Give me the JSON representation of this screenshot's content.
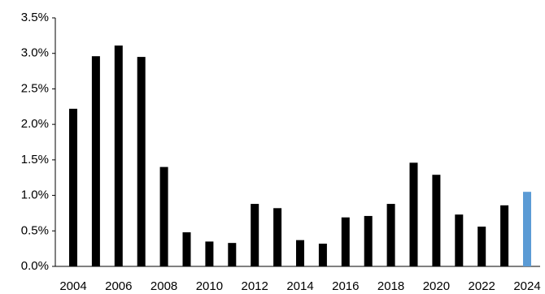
{
  "chart_data": {
    "type": "bar",
    "categories": [
      "2004",
      null,
      "2006",
      null,
      "2008",
      null,
      "2010",
      null,
      "2012",
      null,
      "2014",
      null,
      "2016",
      null,
      "2018",
      null,
      "2020",
      null,
      "2022",
      null,
      "2024"
    ],
    "values": [
      2.22,
      2.96,
      3.11,
      2.95,
      1.4,
      0.48,
      0.35,
      0.33,
      0.88,
      0.82,
      0.37,
      0.32,
      0.69,
      0.71,
      0.88,
      1.46,
      1.29,
      0.73,
      0.56,
      0.86,
      1.05
    ],
    "colors": [
      "#000000",
      "#000000",
      "#000000",
      "#000000",
      "#000000",
      "#000000",
      "#000000",
      "#000000",
      "#000000",
      "#000000",
      "#000000",
      "#000000",
      "#000000",
      "#000000",
      "#000000",
      "#000000",
      "#000000",
      "#000000",
      "#000000",
      "#000000",
      "#5b9bd5"
    ],
    "ylim": [
      0,
      3.5
    ],
    "yticks": [
      {
        "value": 0,
        "label": "0.0%"
      },
      {
        "value": 0.5,
        "label": "0.5%"
      },
      {
        "value": 1,
        "label": "1.0%"
      },
      {
        "value": 1.5,
        "label": "1.5%"
      },
      {
        "value": 2,
        "label": "2.0%"
      },
      {
        "value": 2.5,
        "label": "2.5%"
      },
      {
        "value": 3,
        "label": "3.0%"
      },
      {
        "value": 3.5,
        "label": "3.5%"
      }
    ],
    "grid": false
  }
}
